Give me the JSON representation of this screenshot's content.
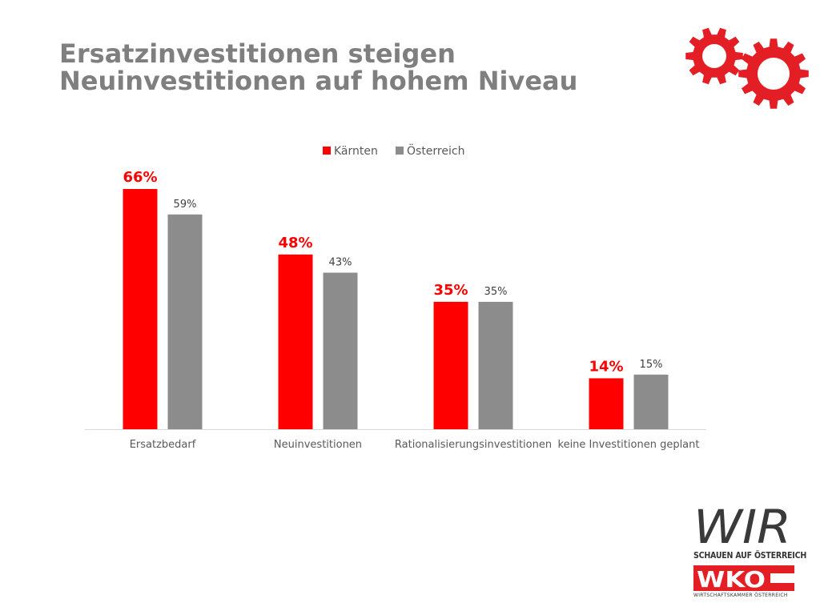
{
  "slide": {
    "title_line1": "Ersatzinvestitionen steigen",
    "title_line2": "Neuinvestitionen auf hohem Niveau"
  },
  "logo": {
    "main_text": "WIR",
    "tagline": "SCHAUEN AUF ÖSTERREICH",
    "brand": "WKO",
    "brand_subtitle": "WIRTSCHAFTSKAMMER ÖSTERREICH"
  },
  "colors": {
    "kaernten": "#ff0000",
    "oesterreich": "#8c8c8c",
    "title": "#7f7f7f",
    "gear": "#e31e24"
  },
  "chart_data": {
    "type": "bar",
    "categories": [
      "Ersatzbedarf",
      "Neuinvestitionen",
      "Rationalisierungsinvestitionen",
      "keine Investitionen geplant"
    ],
    "series": [
      {
        "name": "Kärnten",
        "values": [
          66,
          48,
          35,
          14
        ],
        "labels": [
          "66%",
          "48%",
          "35%",
          "14%"
        ]
      },
      {
        "name": "Österreich",
        "values": [
          59,
          43,
          35,
          15
        ],
        "labels": [
          "59%",
          "43%",
          "35%",
          "15%"
        ]
      }
    ],
    "ylim": [
      0,
      66
    ],
    "legend": "top-center",
    "grid": false
  }
}
